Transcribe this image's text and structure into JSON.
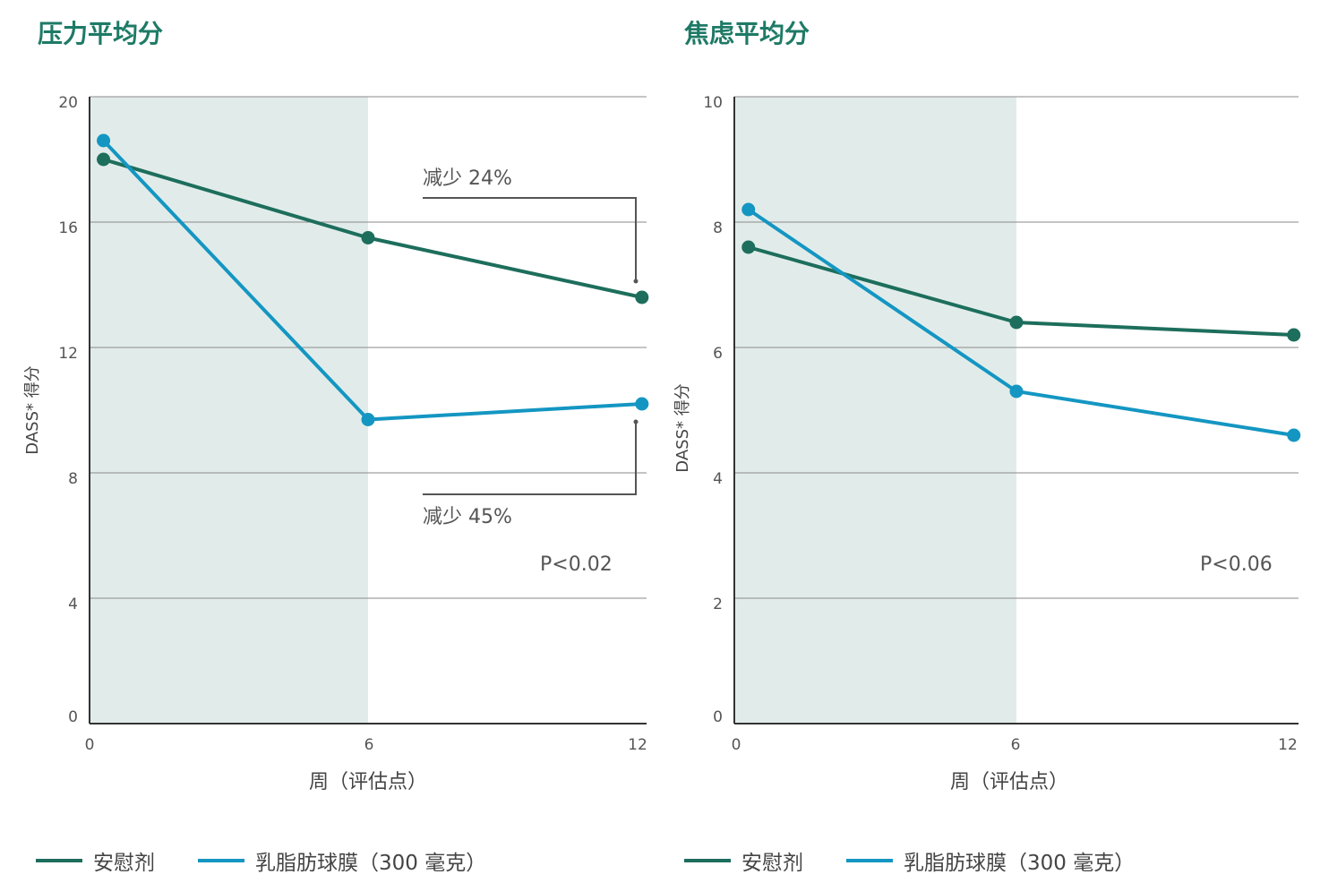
{
  "colors": {
    "placebo": "#1d6e5c",
    "mfgm": "#1496c2",
    "shade": "#e1ecea",
    "title": "#1e7a66"
  },
  "chart_data": [
    {
      "type": "line",
      "title": "压力平均分",
      "xlabel": "周（评估点）",
      "ylabel": "DASS* 得分",
      "xlim": [
        0,
        12
      ],
      "ylim": [
        0,
        20
      ],
      "xticks": [
        "0",
        "6",
        "12"
      ],
      "yticks": [
        "0",
        "4",
        "8",
        "12",
        "16",
        "20"
      ],
      "shaded_x_range": [
        0,
        6
      ],
      "grid": true,
      "legend": "bottom",
      "series": [
        {
          "name": "安慰剂",
          "color_key": "placebo",
          "x": [
            0.3,
            6,
            11.9
          ],
          "y": [
            18.0,
            15.5,
            13.6
          ]
        },
        {
          "name": "乳脂肪球膜（300 毫克）",
          "color_key": "mfgm",
          "x": [
            0.3,
            6,
            11.9
          ],
          "y": [
            18.6,
            9.7,
            10.2
          ]
        }
      ],
      "annotations": [
        {
          "text": "减少 24%",
          "series": "安慰剂"
        },
        {
          "text": "减少 45%",
          "series": "乳脂肪球膜（300 毫克）"
        }
      ],
      "p_value": "P<0.02"
    },
    {
      "type": "line",
      "title": "焦虑平均分",
      "xlabel": "周（评估点）",
      "ylabel": "DASS* 得分",
      "xlim": [
        0,
        12
      ],
      "ylim": [
        0,
        10
      ],
      "xticks": [
        "0",
        "6",
        "12"
      ],
      "yticks": [
        "0",
        "2",
        "4",
        "6",
        "8",
        "10"
      ],
      "shaded_x_range": [
        0,
        6
      ],
      "grid": true,
      "legend": "bottom",
      "series": [
        {
          "name": "安慰剂",
          "color_key": "placebo",
          "x": [
            0.3,
            6,
            11.9
          ],
          "y": [
            7.6,
            6.4,
            6.2
          ]
        },
        {
          "name": "乳脂肪球膜（300 毫克）",
          "color_key": "mfgm",
          "x": [
            0.3,
            6,
            11.9
          ],
          "y": [
            8.2,
            5.3,
            4.6
          ]
        }
      ],
      "p_value": "P<0.06"
    }
  ],
  "legend": [
    {
      "label": "安慰剂",
      "color_key": "placebo"
    },
    {
      "label": "乳脂肪球膜（300 毫克）",
      "color_key": "mfgm"
    }
  ]
}
